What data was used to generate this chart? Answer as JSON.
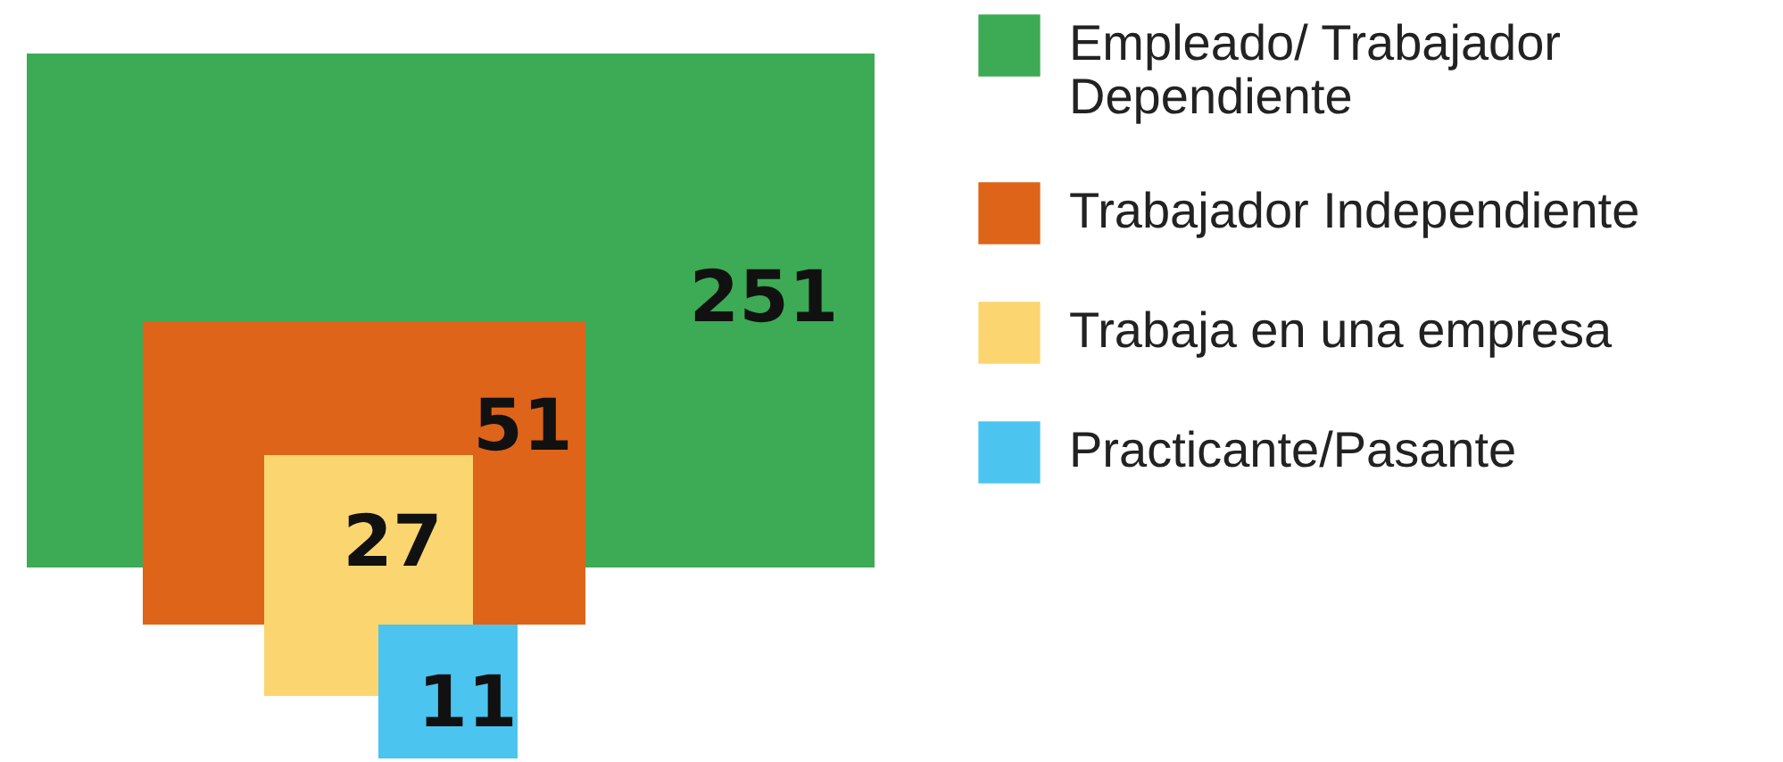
{
  "chart_data": {
    "type": "other",
    "categories": [
      "Empleado/ Trabajador Dependiente",
      "Trabajador Independiente",
      "Trabaja en una empresa",
      "Practicante/Pasante"
    ],
    "values": [
      251,
      51,
      27,
      11
    ],
    "colors": [
      "#3daa55",
      "#de6419",
      "#fbd670",
      "#4cc4f0"
    ],
    "data_labels": true
  }
}
